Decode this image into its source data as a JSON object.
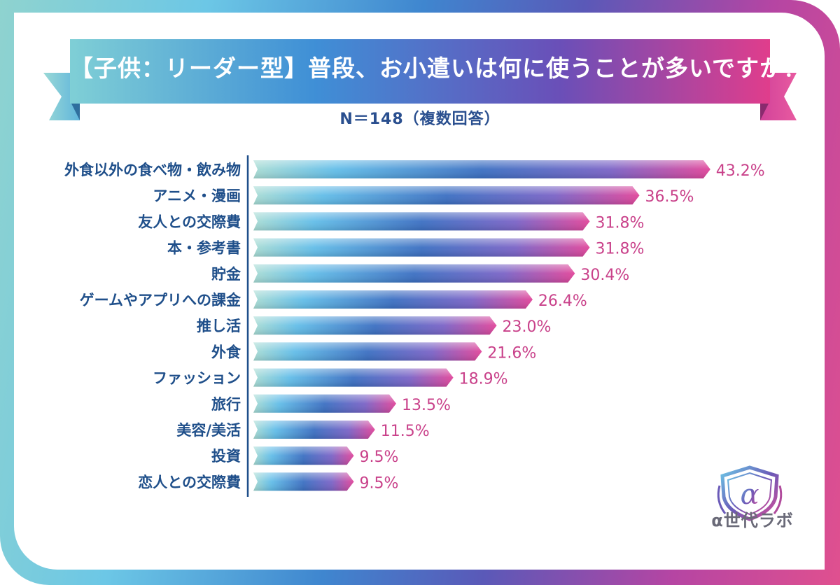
{
  "title": "【子供：リーダー型】普段、お小遣いは何に使うことが多いですか？",
  "subtitle": "N＝148（複数回答）",
  "logo_text": "α世代ラボ",
  "colors": {
    "bar_start": "#9fd9d2",
    "bar_mid": "#4ea4e6",
    "bar_deep": "#3d6fc2",
    "bar_end": "#e0459a",
    "label": "#1f4f8a",
    "value": "#c9418a"
  },
  "chart_data": {
    "type": "bar",
    "orientation": "horizontal",
    "categories": [
      "外食以外の食べ物・飲み物",
      "アニメ・漫画",
      "友人との交際費",
      "本・参考書",
      "貯金",
      "ゲームやアプリへの課金",
      "推し活",
      "外食",
      "ファッション",
      "旅行",
      "美容/美活",
      "投資",
      "恋人との交際費"
    ],
    "values": [
      43.2,
      36.5,
      31.8,
      31.8,
      30.4,
      26.4,
      23.0,
      21.6,
      18.9,
      13.5,
      11.5,
      9.5,
      9.5
    ],
    "value_labels": [
      "43.2%",
      "36.5%",
      "31.8%",
      "31.8%",
      "30.4%",
      "26.4%",
      "23.0%",
      "21.6%",
      "18.9%",
      "13.5%",
      "11.5%",
      "9.5%",
      "9.5%"
    ],
    "unit": "%",
    "xlim": [
      0,
      45
    ],
    "grid": false,
    "legend": "none"
  }
}
